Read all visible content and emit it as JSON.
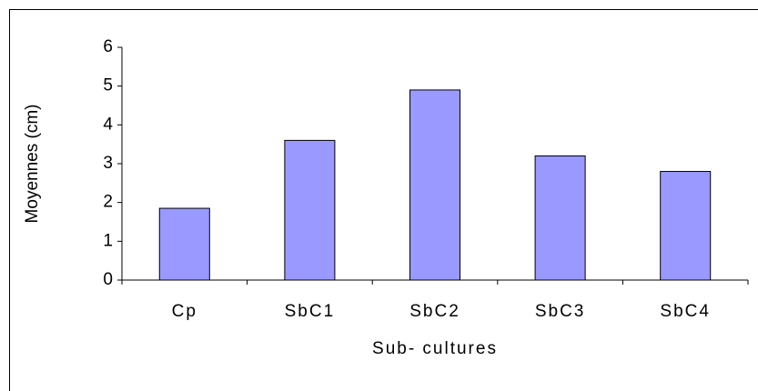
{
  "chart_data": {
    "type": "bar",
    "categories": [
      "Cp",
      "SbC1",
      "SbC2",
      "SbC3",
      "SbC4"
    ],
    "values": [
      1.85,
      3.6,
      4.9,
      3.2,
      2.8
    ],
    "color": "#9999ff",
    "x_label": "Sub- cultures",
    "y_label": "Moyennes (cm)",
    "ylim": [
      0,
      6
    ],
    "yticks": [
      0,
      1,
      2,
      3,
      4,
      5,
      6
    ],
    "grid": false
  }
}
